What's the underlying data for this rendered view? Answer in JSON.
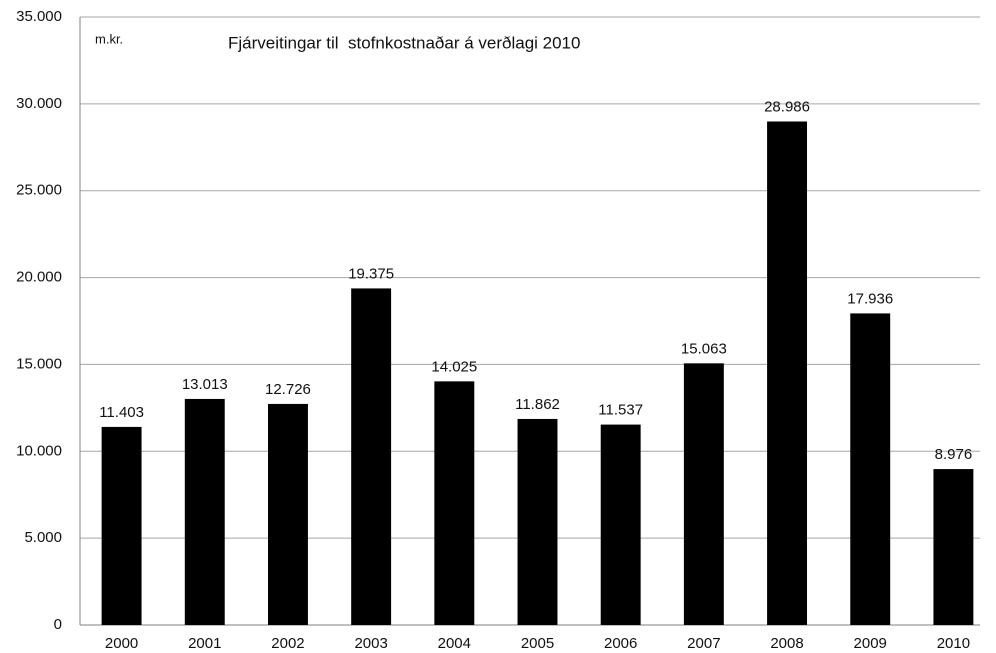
{
  "chart_data": {
    "type": "bar",
    "title": "Fjárveitingar til  stofnkostnaðar á verðlagi 2010",
    "y_unit": "m.kr.",
    "categories": [
      "2000",
      "2001",
      "2002",
      "2003",
      "2004",
      "2005",
      "2006",
      "2007",
      "2008",
      "2009",
      "2010"
    ],
    "values": [
      11403,
      13013,
      12726,
      19375,
      14025,
      11862,
      11537,
      15063,
      28986,
      17936,
      8976
    ],
    "value_labels": [
      "11.403",
      "13.013",
      "12.726",
      "19.375",
      "14.025",
      "11.862",
      "11.537",
      "15.063",
      "28.986",
      "17.936",
      "8.976"
    ],
    "color": "#000000",
    "ylim": [
      0,
      35000
    ],
    "yticks": [
      0,
      {
        "value": 5000,
        "label": "5.000"
      },
      {
        "value": 10000,
        "label": "10.000"
      },
      {
        "value": 15000,
        "label": "15.000"
      },
      {
        "value": 20000,
        "label": "20.000"
      },
      {
        "value": 25000,
        "label": "25.000"
      },
      {
        "value": 30000,
        "label": "30.000"
      },
      {
        "value": 35000,
        "label": "35.000"
      }
    ],
    "grid": true
  }
}
